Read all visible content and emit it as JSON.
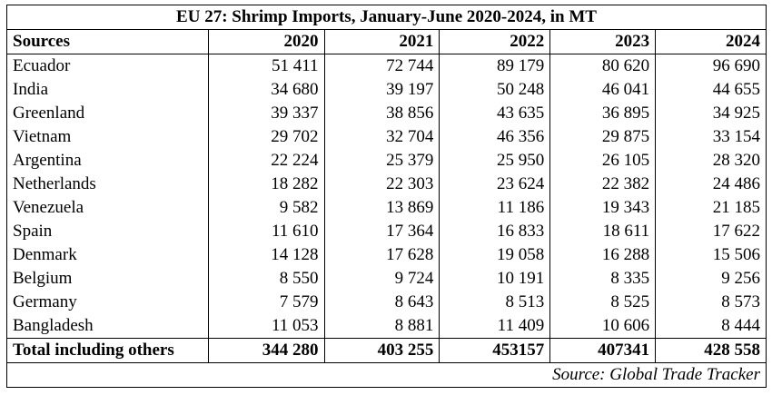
{
  "title": "EU 27: Shrimp Imports, January-June 2020-2024, in MT",
  "table": {
    "header": [
      "Sources",
      "2020",
      "2021",
      "2022",
      "2023",
      "2024"
    ],
    "rows": [
      [
        "Ecuador",
        "51 411",
        "72 744",
        "89 179",
        "80 620",
        "96 690"
      ],
      [
        "India",
        "34 680",
        "39 197",
        "50 248",
        "46 041",
        "44 655"
      ],
      [
        "Greenland",
        "39 337",
        "38 856",
        "43 635",
        "36 895",
        "34 925"
      ],
      [
        "Vietnam",
        "29 702",
        "32 704",
        "46 356",
        "29 875",
        "33 154"
      ],
      [
        "Argentina",
        "22 224",
        "25 379",
        "25 950",
        "26 105",
        "28 320"
      ],
      [
        "Netherlands",
        "18 282",
        "22 303",
        "23 624",
        "22 382",
        "24 486"
      ],
      [
        "Venezuela",
        "9 582",
        "13 869",
        "11 186",
        "19 343",
        "21 185"
      ],
      [
        "Spain",
        "11 610",
        "17 364",
        "16 833",
        "18 611",
        "17 622"
      ],
      [
        "Denmark",
        "14 128",
        "17 628",
        "19 058",
        "16 288",
        "15 506"
      ],
      [
        "Belgium",
        "8 550",
        "9 724",
        "10 191",
        "8 335",
        "9 256"
      ],
      [
        "Germany",
        "7 579",
        "8 643",
        "8 513",
        "8 525",
        "8 573"
      ],
      [
        "Bangladesh",
        "11 053",
        "8 881",
        "11 409",
        "10 606",
        "8 444"
      ]
    ],
    "total": [
      "Total including others",
      "344 280",
      "403 255",
      "453157",
      "407341",
      "428 558"
    ]
  },
  "source": "Source: Global Trade Tracker"
}
